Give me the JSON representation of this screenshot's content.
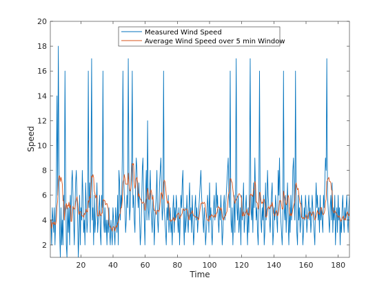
{
  "chart_data": {
    "type": "line",
    "title": "",
    "xlabel": "Time",
    "ylabel": "Speed",
    "xlim": [
      1,
      187
    ],
    "ylim": [
      1,
      20
    ],
    "xticks": [
      20,
      40,
      60,
      80,
      100,
      120,
      140,
      160,
      180
    ],
    "yticks": [
      2,
      4,
      6,
      8,
      10,
      12,
      14,
      16,
      18,
      20
    ],
    "grid": false,
    "legend": "top-center",
    "series": [
      {
        "name": "Measured Wind Speed",
        "color": "#0072BD",
        "values": [
          4,
          4,
          2,
          5,
          4,
          3,
          5,
          2,
          4,
          7,
          14,
          6,
          18,
          9,
          3,
          1,
          5,
          2,
          4,
          2,
          6,
          4,
          16,
          7,
          2,
          1,
          5,
          3,
          5,
          2,
          6,
          4,
          7,
          8,
          6,
          4,
          2,
          5,
          7,
          8,
          6,
          4,
          1,
          3,
          6,
          2,
          5,
          4,
          8,
          6,
          3,
          4,
          2,
          7,
          5,
          3,
          4,
          16,
          5,
          7,
          3,
          8,
          17,
          4,
          5,
          2,
          6,
          3,
          4,
          5,
          7,
          3,
          4,
          5,
          6,
          3,
          2,
          6,
          5,
          16,
          4,
          3,
          5,
          3,
          4,
          2,
          4,
          3,
          5,
          3,
          2,
          4,
          3,
          2,
          5,
          4,
          3,
          2,
          5,
          4,
          3,
          6,
          2,
          8,
          7,
          4,
          6,
          5,
          9,
          16,
          8,
          6,
          5,
          3,
          4,
          6,
          5,
          17,
          8,
          4,
          5,
          7,
          9,
          16,
          5,
          6,
          4,
          3,
          7,
          9,
          8,
          6,
          5,
          7,
          4,
          2,
          3,
          5,
          8,
          9,
          6,
          4,
          2,
          6,
          8,
          4,
          12,
          5,
          4,
          6,
          8,
          5,
          4,
          3,
          6,
          5,
          2,
          4,
          5,
          6,
          8,
          4,
          3,
          5,
          7,
          8,
          9,
          6,
          4,
          5,
          16,
          5,
          4,
          3,
          2,
          5,
          4,
          6,
          3,
          4,
          5,
          3,
          4,
          2,
          5,
          6,
          3,
          5,
          4,
          6,
          5,
          4,
          3,
          5,
          2,
          4,
          6,
          5,
          7,
          8,
          4,
          2,
          5,
          3,
          4,
          6,
          4,
          3,
          5,
          7,
          4,
          5,
          3,
          6,
          4,
          2,
          3,
          5,
          6,
          4,
          5,
          3,
          4,
          5,
          6,
          7,
          8,
          6,
          5,
          4,
          3,
          5,
          4,
          2,
          3,
          4,
          6,
          5,
          3,
          7,
          4,
          5,
          3,
          2,
          4,
          5,
          6,
          4,
          5,
          7,
          5,
          6,
          4,
          3,
          5,
          4,
          6,
          4,
          2,
          3,
          5,
          6,
          4,
          5,
          6,
          7,
          8,
          9,
          6,
          5,
          16,
          4,
          3,
          5,
          2,
          4,
          6,
          3,
          7,
          17,
          5,
          4,
          6,
          3,
          4,
          5,
          2,
          6,
          4,
          5,
          7,
          3,
          4,
          5,
          6,
          4,
          2,
          5,
          3,
          8,
          17,
          5,
          4,
          6,
          3,
          7,
          5,
          9,
          6,
          4,
          5,
          3,
          2,
          6,
          16,
          5,
          4,
          3,
          5,
          4,
          6,
          2,
          3,
          7,
          4,
          5,
          8,
          6,
          5,
          4,
          3,
          5,
          6,
          7,
          2,
          3,
          5,
          4,
          6,
          5,
          4,
          3,
          8,
          6,
          9,
          5,
          4,
          3,
          2,
          4,
          16,
          5,
          4,
          6,
          3,
          5,
          7,
          4,
          2,
          5,
          3,
          6,
          4,
          5,
          8,
          9,
          6,
          4,
          16,
          5,
          3,
          2,
          6,
          4,
          5,
          3,
          4,
          6,
          5,
          2,
          3,
          5,
          4,
          6,
          5,
          3,
          4,
          5,
          6,
          4,
          5,
          3,
          4,
          6,
          5,
          4,
          3,
          2,
          5,
          7,
          5,
          6,
          4,
          5,
          3,
          6,
          4,
          5,
          4,
          3,
          6,
          5,
          7,
          9,
          8,
          17,
          6,
          5,
          4,
          3,
          5,
          6,
          4,
          7,
          3,
          5,
          4,
          6,
          2,
          4,
          5,
          3,
          6,
          4,
          5,
          2,
          4,
          3,
          5,
          6,
          4,
          3,
          5,
          4,
          5,
          6,
          4,
          3,
          5,
          6
        ]
      },
      {
        "name": "Average Wind Speed over 5 min Window",
        "color": "#D95319",
        "values": []
      }
    ]
  }
}
